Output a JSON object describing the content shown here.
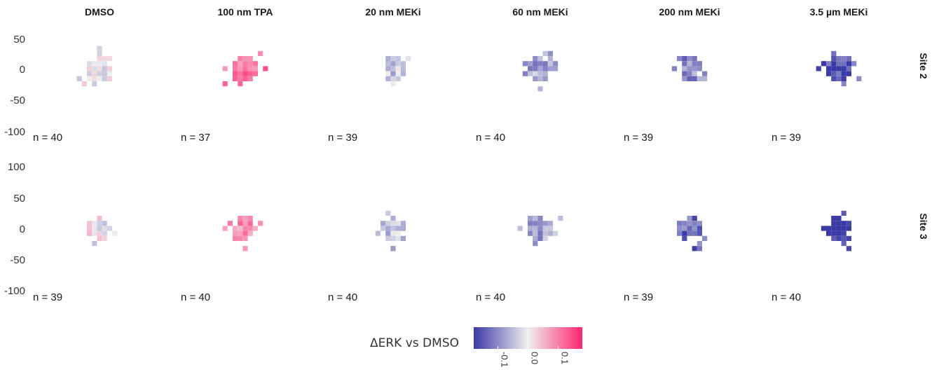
{
  "chart_data": {
    "type": "heatmap",
    "columns": [
      "DMSO",
      "100 nm TPA",
      "20 nm MEKi",
      "60 nm MEKi",
      "200 nm MEKi",
      "3.5 µm MEKi"
    ],
    "rows": [
      "Site 2",
      "Site 3"
    ],
    "y_ticks": [
      50,
      0,
      -50,
      -100
    ],
    "y_ticks_extra_top": [
      100
    ],
    "ylim": [
      -100,
      100
    ],
    "xlim": [
      -100,
      100
    ],
    "n_counts": [
      [
        "n = 40",
        "n = 37",
        "n = 39",
        "n = 40",
        "n = 39",
        "n = 39"
      ],
      [
        "n = 39",
        "n = 40",
        "n = 40",
        "n = 40",
        "n = 39",
        "n = 40"
      ]
    ],
    "mean_delta_erk": [
      [
        0.0,
        0.1,
        -0.04,
        -0.07,
        -0.1,
        -0.15
      ],
      [
        0.0,
        0.08,
        -0.04,
        -0.07,
        -0.13,
        -0.18
      ]
    ],
    "blob_radius": [
      [
        44,
        44,
        38,
        44,
        40,
        46
      ],
      [
        36,
        38,
        40,
        42,
        40,
        40
      ]
    ],
    "legend": {
      "title": "ΔERK vs DMSO",
      "ticks": [
        "-0.1",
        "0.0",
        "0.1"
      ],
      "tick_values": [
        -0.1,
        0.0,
        0.1
      ],
      "range": [
        -0.18,
        0.18
      ],
      "colors": {
        "low": "#3a3aa6",
        "mid": "#efefef",
        "high": "#ff2470"
      }
    }
  }
}
